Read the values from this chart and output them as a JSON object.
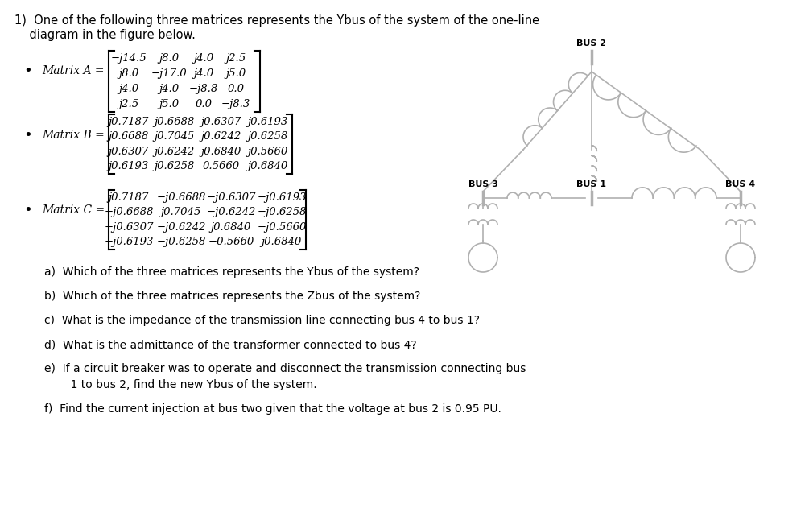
{
  "title_line1": "1)  One of the following three matrices represents the Ybus of the system of the one-line",
  "title_line2": "    diagram in the figure below.",
  "matrix_A_label": "Matrix A =",
  "matrix_A": [
    [
      "−j14.5",
      "j8.0",
      "j4.0",
      "j2.5"
    ],
    [
      "j8.0",
      "−j17.0",
      "j4.0",
      "j5.0"
    ],
    [
      "j4.0",
      "j4.0",
      "−j8.8",
      "0.0"
    ],
    [
      "j2.5",
      "j5.0",
      "0.0",
      "−j8.3"
    ]
  ],
  "matrix_B_label": "Matrix B =",
  "matrix_B": [
    [
      "j0.7187",
      "j0.6688",
      "j0.6307",
      "j0.6193"
    ],
    [
      "j0.6688",
      "j0.7045",
      "j0.6242",
      "j0.6258"
    ],
    [
      "j0.6307",
      "j0.6242",
      "j0.6840",
      "j0.5660"
    ],
    [
      "j0.6193",
      "j0.6258",
      "0.5660",
      "j0.6840"
    ]
  ],
  "matrix_C_label": "Matrix C =",
  "matrix_C": [
    [
      "j0.7187",
      "−j0.6688",
      "−j0.6307",
      "−j0.6193"
    ],
    [
      "−j0.6688",
      "j0.7045",
      "−j0.6242",
      "−j0.6258"
    ],
    [
      "−j0.6307",
      "−j0.6242",
      "j0.6840",
      "−j0.5660"
    ],
    [
      "−j0.6193",
      "−j0.6258",
      "−0.5660",
      "j0.6840"
    ]
  ],
  "questions": [
    "a)  Which of the three matrices represents the Ybus of the system?",
    "b)  Which of the three matrices represents the Zbus of the system?",
    "c)  What is the impedance of the transmission line connecting bus 4 to bus 1?",
    "d)  What is the admittance of the transformer connected to bus 4?",
    "e)  If a circuit breaker was to operate and disconnect the transmission connecting bus",
    "    1 to bus 2, find the new Ybus of the system.",
    "f)  Find the current injection at bus two given that the voltage at bus 2 is 0.95 PU."
  ],
  "bg_color": "#ffffff",
  "text_color": "#000000",
  "diagram_color": "#b0b0b0"
}
